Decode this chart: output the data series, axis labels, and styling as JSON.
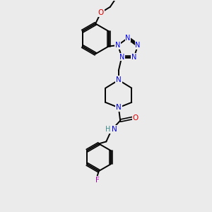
{
  "background_color": "#ebebeb",
  "atom_colors": {
    "C": "#000000",
    "N": "#0000ee",
    "O": "#dd0000",
    "F": "#aa00aa",
    "H": "#3a8a8a"
  },
  "bond_color": "#000000",
  "bond_width": 1.4,
  "figsize": [
    3.0,
    3.0
  ],
  "dpi": 100,
  "xlim": [
    0,
    10
  ],
  "ylim": [
    0,
    10
  ]
}
